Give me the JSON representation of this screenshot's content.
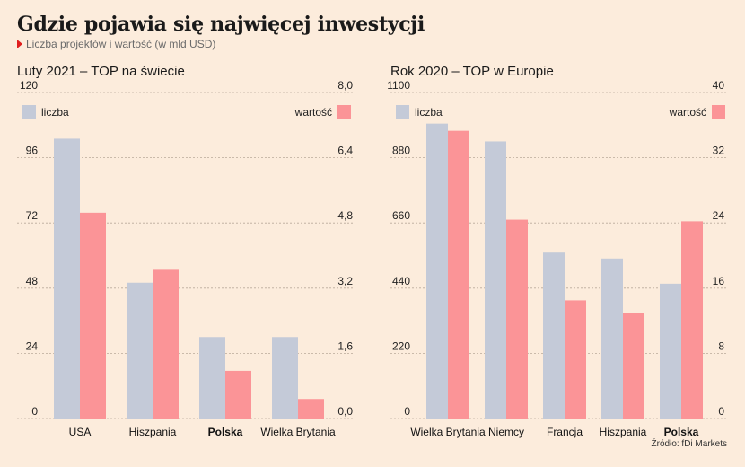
{
  "header": {
    "title": "Gdzie pojawia się najwięcej inwestycji",
    "subtitle": "Liczba projektów i wartość (w mld USD)"
  },
  "source": "Źródło: fDi Markets",
  "colors": {
    "count": "#c4cad8",
    "value": "#fb9497",
    "grid": "#b9a99a",
    "accent": "#e01e1e"
  },
  "chart_data": [
    {
      "type": "bar",
      "title": "Luty 2021 – TOP na świecie",
      "categories": [
        "USA",
        "Hiszpania",
        "Polska",
        "Wielka Brytania"
      ],
      "highlight": "Polska",
      "series": [
        {
          "name": "liczba",
          "axis": "left",
          "values": [
            103,
            50,
            30,
            30
          ]
        },
        {
          "name": "wartość",
          "axis": "right",
          "values": [
            5.05,
            3.65,
            1.17,
            0.48
          ]
        }
      ],
      "ylim_left": [
        0,
        120
      ],
      "ylim_right": [
        0,
        8
      ],
      "yticks_left": [
        "0",
        "24",
        "48",
        "72",
        "96",
        "120"
      ],
      "yticks_right": [
        "0,0",
        "1,6",
        "3,2",
        "4,8",
        "6,4",
        "8,0"
      ],
      "grid": true,
      "legend": {
        "left_label": "liczba",
        "right_label": "wartość"
      }
    },
    {
      "type": "bar",
      "title": "Rok 2020 – TOP w Europie",
      "categories": [
        "Wielka Brytania",
        "Niemcy",
        "Francja",
        "Hiszpania",
        "Polska"
      ],
      "highlight": "Polska",
      "series": [
        {
          "name": "liczba",
          "axis": "left",
          "values": [
            995,
            935,
            560,
            540,
            455
          ]
        },
        {
          "name": "wartość",
          "axis": "right",
          "values": [
            35.3,
            24.4,
            14.5,
            12.9,
            24.2
          ]
        }
      ],
      "ylim_left": [
        0,
        1100
      ],
      "ylim_right": [
        0,
        40
      ],
      "yticks_left": [
        "0",
        "220",
        "440",
        "660",
        "880",
        "1100"
      ],
      "yticks_right": [
        "0",
        "8",
        "16",
        "24",
        "32",
        "40"
      ],
      "grid": true,
      "legend": {
        "left_label": "liczba",
        "right_label": "wartość"
      }
    }
  ]
}
